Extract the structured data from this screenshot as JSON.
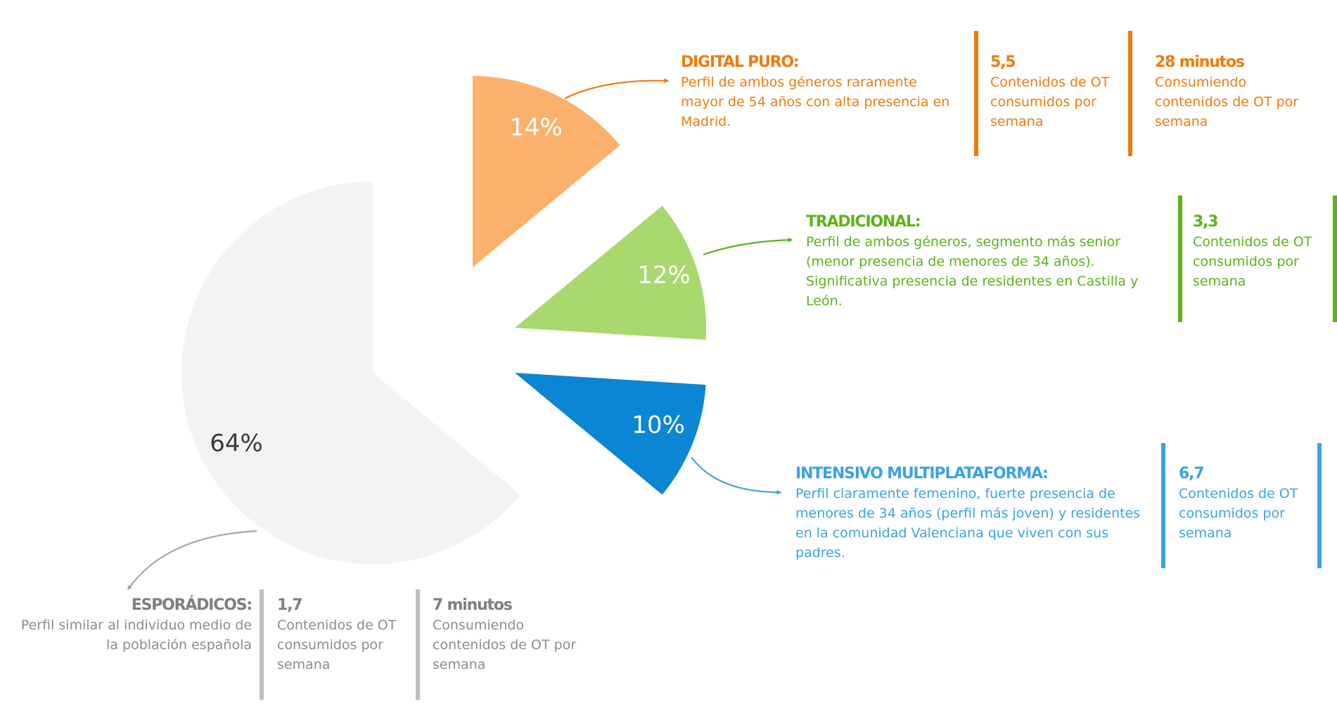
{
  "chart_data": {
    "type": "pie",
    "slices": [
      {
        "label": "DIGITAL PURO:",
        "value": 14,
        "value_label": "14%",
        "color": "#FBB16C",
        "description": [
          "Perfil de ambos géneros raramente",
          "mayor de 54 años con alta presencia en",
          "Madrid."
        ],
        "title_color": "#F07B0B",
        "text_color": "#F07B0B",
        "bar_color": "#F07B0B",
        "arrow_color": "#F07B0B",
        "stats": [
          {
            "value": "5,5",
            "lines": [
              "Contenidos de OT",
              "consumidos por",
              "semana"
            ]
          },
          {
            "value": "28 minutos",
            "lines": [
              "Consumiendo",
              "contenidos de OT por",
              "semana"
            ]
          }
        ]
      },
      {
        "label": "TRADICIONAL:",
        "value": 12,
        "value_label": "12%",
        "color": "#A8D86E",
        "description": [
          "Perfil de ambos géneros, segmento más senior",
          "(menor presencia de menores de 34 años).",
          "Significativa presencia de residentes en Castilla y",
          "León."
        ],
        "title_color": "#5BB318",
        "text_color": "#5BB318",
        "bar_color": "#5BB318",
        "arrow_color": "#5BB318",
        "stats": [
          {
            "value": "3,3",
            "lines": [
              "Contenidos de OT",
              "consumidos por",
              "semana"
            ]
          }
        ]
      },
      {
        "label": "INTENSIVO MULTIPLATAFORMA:",
        "value": 10,
        "value_label": "10%",
        "color": "#0A86D4",
        "description": [
          "Perfil claramente femenino, fuerte presencia de",
          "menores de 34 años (perfil más joven) y residentes",
          "en la comunidad Valenciana que viven con sus",
          "padres."
        ],
        "title_color": "#3AA3E3",
        "text_color": "#3AA3E3",
        "bar_color": "#3AA3E3",
        "arrow_color": "#3AA3E3",
        "stats": [
          {
            "value": "6,7",
            "lines": [
              "Contenidos de OT",
              "consumidos por",
              "semana"
            ]
          }
        ]
      },
      {
        "label": "ESPORÁDICOS:",
        "value": 64,
        "value_label": "64%",
        "color": "#F3F3F3",
        "description": [
          "Perfil similar al individuo medio de",
          "la población española"
        ],
        "title_color": "#7F7F7F",
        "text_color": "#8C8C8C",
        "bar_color": "#BFBFBF",
        "arrow_color": "#A6A6A6",
        "stats": [
          {
            "value": "1,7",
            "lines": [
              "Contenidos de OT",
              "consumidos por",
              "semana"
            ]
          },
          {
            "value": "7 minutos",
            "lines": [
              "Consumiendo",
              "contenidos de OT por",
              "semana"
            ]
          }
        ]
      }
    ]
  }
}
